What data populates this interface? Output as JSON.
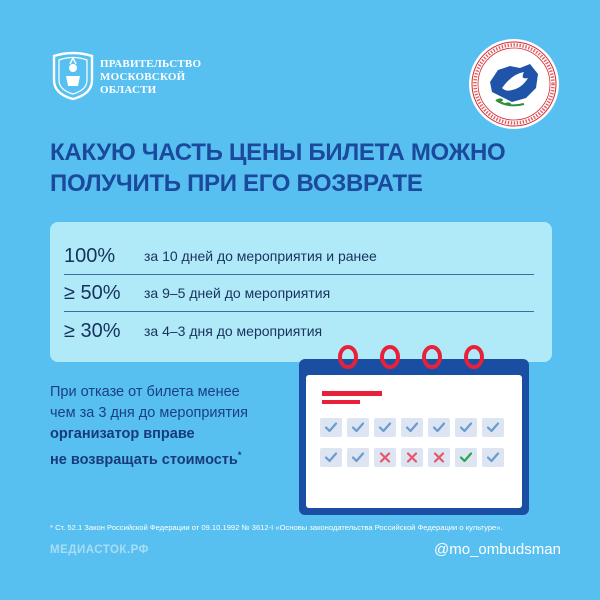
{
  "header": {
    "gov_lines": [
      "ПРАВИТЕЛЬСТВО",
      "МОСКОВСКОЙ",
      "ОБЛАСТИ"
    ],
    "gov_logo_icon": "moscow-region-coat-of-arms-icon",
    "emblem_icon": "ombudsman-dove-emblem-icon"
  },
  "headline": {
    "line1": "КАКУЮ ЧАСТЬ ЦЕНЫ БИЛЕТА МОЖНО",
    "line2": "ПОЛУЧИТЬ ПРИ ЕГО ВОЗВРАТЕ"
  },
  "refund_table": [
    {
      "percent": "100%",
      "condition": "за 10 дней до мероприятия и ранее"
    },
    {
      "percent": "≥ 50%",
      "condition": "за 9–5 дней до мероприятия"
    },
    {
      "percent": "≥ 30%",
      "condition": "за 4–3 дня до мероприятия"
    }
  ],
  "note": {
    "line1": "При отказе от билета менее",
    "line2": "чем за 3 дня до мероприятия",
    "line3": "организатор вправе",
    "line4": "не возвращать стоимость",
    "mark": "*"
  },
  "calendar": {
    "icon": "calendar-icon",
    "row1": [
      "check",
      "check",
      "check",
      "check",
      "check",
      "check",
      "check"
    ],
    "row2": [
      "check",
      "check",
      "cross",
      "cross",
      "cross",
      "check-green",
      "check"
    ]
  },
  "footer": {
    "footnote": "* Ст. 52.1 Закон Российской Федерации от 09.10.1992 № 3612-I «Основы законодательства Российской Федерации о культуре».",
    "site": "МЕДИАСТОК.РФ",
    "handle": "@mo_ombudsman"
  },
  "colors": {
    "background": "#57c0f0",
    "headline": "#1b4a9c",
    "card": "#b0e9f7",
    "calendar_accent": "#e8203a",
    "calendar_frame": "#1a4ea3"
  }
}
